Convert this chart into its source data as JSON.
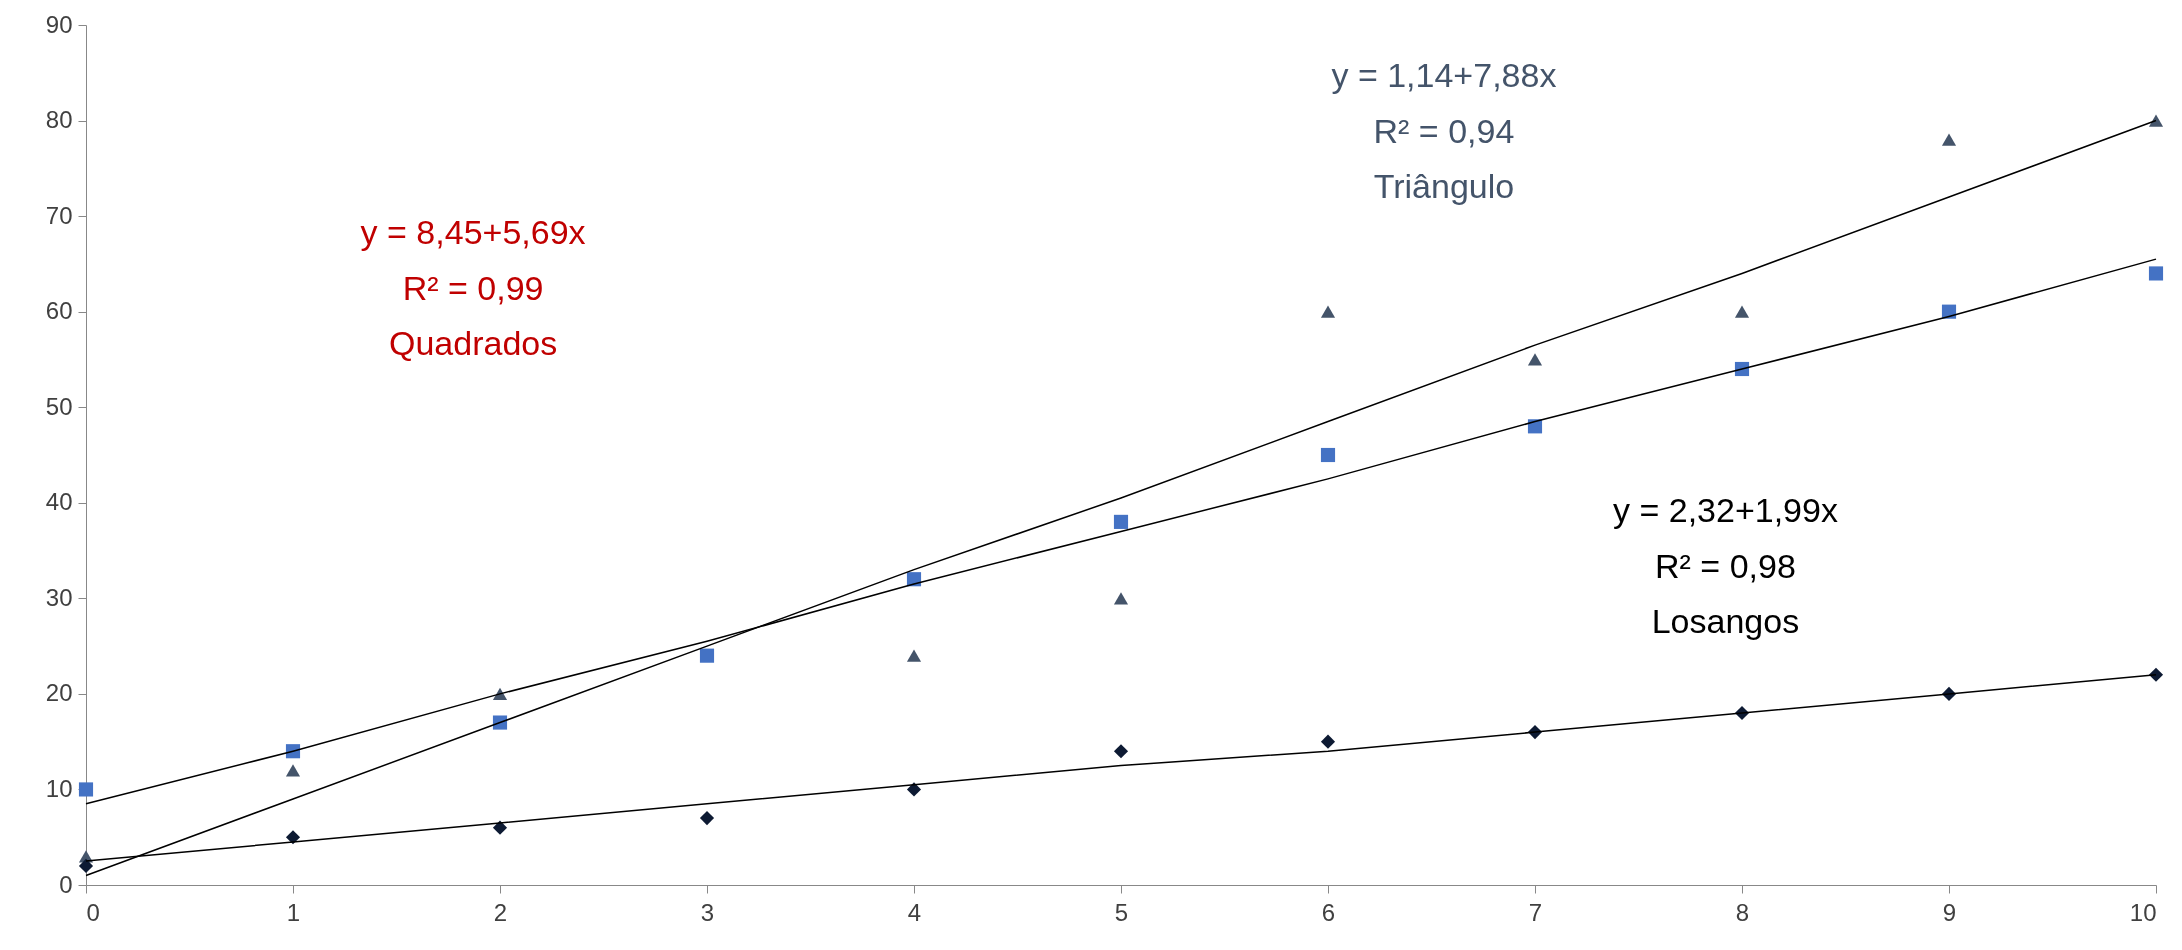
{
  "chart_data": {
    "type": "scatter",
    "x": [
      0,
      1,
      2,
      3,
      4,
      5,
      6,
      7,
      8,
      9,
      10
    ],
    "series": [
      {
        "marker": "triangle",
        "color": "#44546a",
        "values": [
          3,
          12,
          20,
          null,
          24,
          30,
          60,
          55,
          60,
          78,
          80
        ]
      },
      {
        "marker": "square",
        "color": "#4472c4",
        "values": [
          10,
          14,
          17,
          24,
          32,
          38,
          45,
          48,
          54,
          60,
          64
        ]
      },
      {
        "marker": "diamond",
        "color": "#0d1a33",
        "values": [
          2,
          5,
          6,
          7,
          10,
          14,
          15,
          16,
          18,
          20,
          22
        ]
      },
      {
        "type": "line",
        "marker": "none",
        "color": "#000000",
        "values": [
          1,
          9,
          17,
          25,
          33,
          40.5,
          48.5,
          56.5,
          64,
          72,
          80
        ]
      },
      {
        "type": "line",
        "marker": "none",
        "color": "#000000",
        "values": [
          8.5,
          14,
          20,
          25.5,
          31.5,
          37,
          42.5,
          48.5,
          54,
          59.5,
          65.5
        ]
      },
      {
        "type": "line",
        "marker": "none",
        "color": "#000000",
        "values": [
          2.5,
          4.5,
          6.5,
          8.5,
          10.5,
          12.5,
          14,
          16,
          18,
          20,
          22
        ]
      }
    ],
    "xlim": [
      0,
      10
    ],
    "xticks": [
      0,
      1,
      2,
      3,
      4,
      5,
      6,
      7,
      8,
      9,
      10
    ],
    "ylim": [
      0,
      90
    ],
    "yticks": [
      0,
      10,
      20,
      30,
      40,
      50,
      60,
      70,
      80,
      90
    ],
    "grid": false,
    "annotations": [
      "y = 8,45+5,69x",
      "R² = 0,99",
      "Quadrados",
      "y = 1,14+7,88x",
      "R² = 0,94",
      "Triângulo",
      "y = 2,32+1,99x",
      "R² = 0,98",
      "Losangos"
    ]
  }
}
